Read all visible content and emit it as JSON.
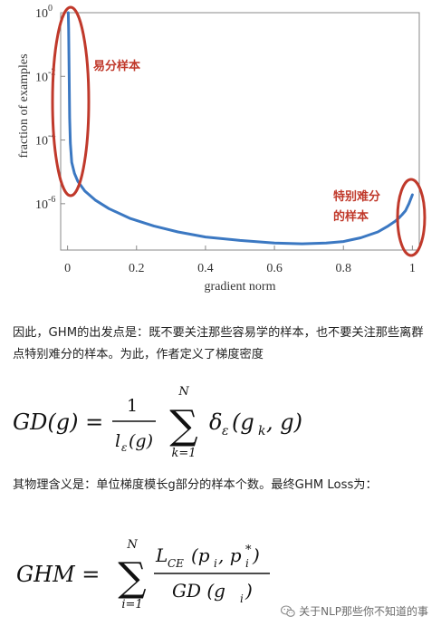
{
  "chart_data": {
    "type": "line",
    "title": "",
    "xlabel": "gradient norm",
    "ylabel": "fraction of examples",
    "xlim": [
      -0.02,
      1.02
    ],
    "ylim": [
      3.5e-08,
      1
    ],
    "y_scale": "log",
    "x_ticks": [
      0,
      0.2,
      0.4,
      0.6,
      0.8,
      1
    ],
    "x_tick_labels": [
      "0",
      "0.2",
      "0.4",
      "0.6",
      "0.8",
      "1"
    ],
    "y_ticks": [
      1,
      0.01,
      0.0001,
      1e-06
    ],
    "y_tick_labels": [
      {
        "base": "10",
        "exp": "0"
      },
      {
        "base": "10",
        "exp": "-2"
      },
      {
        "base": "10",
        "exp": "-4"
      },
      {
        "base": "10",
        "exp": "-6"
      }
    ],
    "line_color": "#3b78c2",
    "x": [
      0.002,
      0.003,
      0.004,
      0.005,
      0.006,
      0.008,
      0.012,
      0.02,
      0.03,
      0.05,
      0.08,
      0.12,
      0.18,
      0.25,
      0.32,
      0.4,
      0.5,
      0.6,
      0.68,
      0.75,
      0.8,
      0.85,
      0.9,
      0.93,
      0.95,
      0.96,
      0.97,
      0.98,
      0.99,
      1.0
    ],
    "y": [
      1,
      0.3,
      0.05,
      0.005,
      0.0005,
      8e-05,
      2e-05,
      9e-06,
      5e-06,
      2.5e-06,
      1.3e-06,
      7e-07,
      3.5e-07,
      2e-07,
      1.3e-07,
      9e-08,
      7e-08,
      5.8e-08,
      5.5e-08,
      5.8e-08,
      6.5e-08,
      8.5e-08,
      1.3e-07,
      2e-07,
      2.8e-07,
      3.5e-07,
      4.5e-07,
      6e-07,
      1e-06,
      1.9e-06
    ],
    "annotations": [
      {
        "text": "易分样本",
        "lines": [
          "易分样本"
        ],
        "color": "#c0392b"
      },
      {
        "text": "特别难分的样本",
        "lines": [
          "特别难分",
          "的样本"
        ],
        "color": "#c0392b"
      }
    ]
  },
  "text": {
    "para1": "因此，GHM的出发点是：既不要关注那些容易学的样本，也不要关注那些离群点特别难分的样本。为此，作者定义了梯度密度",
    "para2": "其物理含义是：单位梯度模长g部分的样本个数。最终GHM Loss为："
  },
  "formula1": {
    "lhs": "GD(g) =",
    "numerator": "1",
    "den_l": "l",
    "den_eps": "ε",
    "den_arg": "(g)",
    "sum_top": "N",
    "sum_bottom": "k=1",
    "delta": "δ",
    "delta_sub": "ε",
    "delta_arg": "(g",
    "delta_arg_sub": "k",
    "delta_arg_end": ", g)"
  },
  "formula2": {
    "lhs": "GHM =",
    "sum_top": "N",
    "sum_bottom": "i=1",
    "num_L": "L",
    "num_L_sub": "CE",
    "num_arg": "(p",
    "num_p_sub": "i",
    "num_comma": ", p",
    "num_p2_sup": "*",
    "num_p2_sub": "i",
    "num_close": ")",
    "den": "GD (g",
    "den_sub": "i",
    "den_close": ")"
  },
  "watermark": {
    "text": "关于NLP那些你不知道的事",
    "icon": "wechat-icon"
  }
}
